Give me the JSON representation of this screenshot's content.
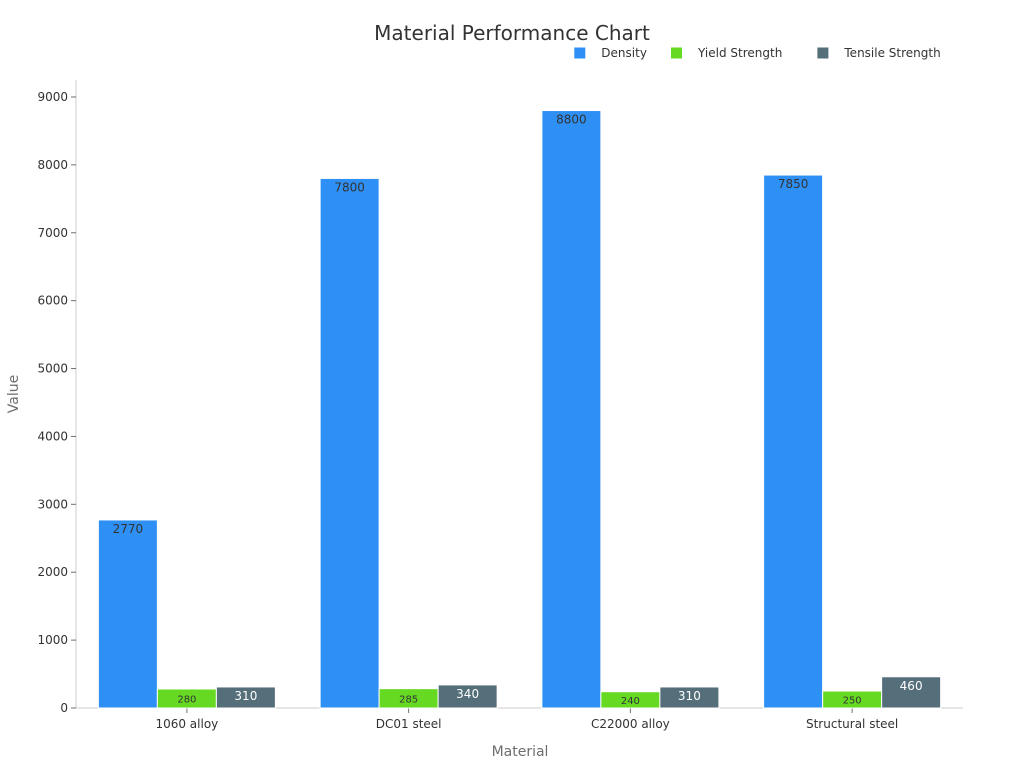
{
  "chart_data": {
    "type": "bar",
    "title": "Material Performance Chart",
    "xlabel": "Material",
    "ylabel": "Value",
    "categories": [
      "1060 alloy",
      "DC01 steel",
      "C22000 alloy",
      "Structural steel"
    ],
    "series": [
      {
        "name": "Density",
        "color": "#2e90f5",
        "label_color": "#333333",
        "values": [
          2770,
          7800,
          8800,
          7850
        ]
      },
      {
        "name": "Yield Strength",
        "color": "#66d923",
        "label_color": "#333333",
        "values": [
          280,
          285,
          240,
          250
        ]
      },
      {
        "name": "Tensile Strength",
        "color": "#546e7a",
        "label_color": "#ffffff",
        "values": [
          310,
          340,
          310,
          460
        ]
      }
    ],
    "yticks": [
      0,
      1000,
      2000,
      3000,
      4000,
      5000,
      6000,
      7000,
      8000,
      9000
    ],
    "ylim": [
      0,
      9250
    ],
    "grid": false,
    "legend_position": "top-right",
    "axis_color": "#cccccc"
  }
}
